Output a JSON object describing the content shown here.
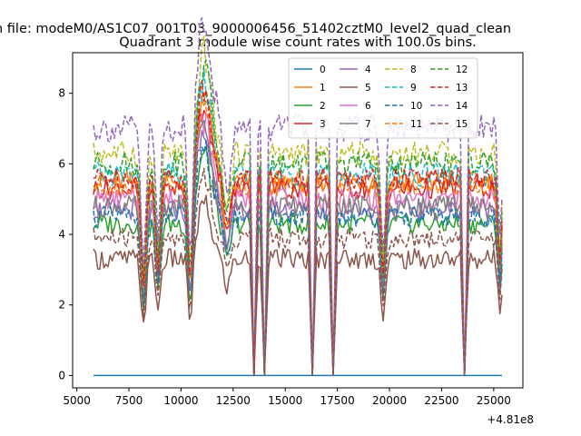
{
  "figure": {
    "suptitle": "n file: modeM0/AS1C07_001T03_9000006456_51402cztM0_level2_quad_clean",
    "title": "Quadrant 3 module wise count rates with 100.0s bins.",
    "x_offset_label": "+4.81e8"
  },
  "chart_data": {
    "type": "line",
    "title": "Quadrant 3 module wise count rates with 100.0s bins.",
    "xlabel": "",
    "ylabel": "",
    "x_offset": 481000000,
    "xlim": [
      4800,
      26400
    ],
    "ylim": [
      -0.35,
      9.15
    ],
    "xticks": [
      5000,
      7500,
      10000,
      12500,
      15000,
      17500,
      20000,
      22500,
      25000
    ],
    "yticks": [
      0,
      2,
      4,
      6,
      8
    ],
    "legend_position": "top-right",
    "x_range": [
      5800,
      25400
    ],
    "gaps_x": [
      13500,
      14000,
      16300,
      17300,
      23600
    ],
    "series": [
      {
        "name": "0",
        "color": "#1f77b4",
        "style": "solid",
        "level": 0.0,
        "amplitude": 0.0
      },
      {
        "name": "1",
        "color": "#ff7f0e",
        "style": "solid",
        "level": 5.5,
        "amplitude": 0.3
      },
      {
        "name": "2",
        "color": "#2ca02c",
        "style": "solid",
        "level": 4.3,
        "amplitude": 0.3
      },
      {
        "name": "3",
        "color": "#d62728",
        "style": "solid",
        "level": 5.3,
        "amplitude": 0.3
      },
      {
        "name": "4",
        "color": "#9467bd",
        "style": "solid",
        "level": 4.7,
        "amplitude": 0.3
      },
      {
        "name": "5",
        "color": "#8c564b",
        "style": "solid",
        "level": 3.3,
        "amplitude": 0.3
      },
      {
        "name": "6",
        "color": "#e377c2",
        "style": "solid",
        "level": 5.0,
        "amplitude": 0.3
      },
      {
        "name": "7",
        "color": "#7f7f7f",
        "style": "solid",
        "level": 4.8,
        "amplitude": 0.3
      },
      {
        "name": "8",
        "color": "#bcbd22",
        "style": "dashed",
        "level": 6.3,
        "amplitude": 0.35
      },
      {
        "name": "9",
        "color": "#17becf",
        "style": "dashed",
        "level": 5.7,
        "amplitude": 0.35
      },
      {
        "name": "10",
        "color": "#1f77b4",
        "style": "dashed",
        "level": 4.5,
        "amplitude": 0.3
      },
      {
        "name": "11",
        "color": "#ff7f0e",
        "style": "dashed",
        "level": 5.4,
        "amplitude": 0.3
      },
      {
        "name": "12",
        "color": "#2ca02c",
        "style": "dashed",
        "level": 6.0,
        "amplitude": 0.35
      },
      {
        "name": "13",
        "color": "#d62728",
        "style": "dashed",
        "level": 5.6,
        "amplitude": 0.3
      },
      {
        "name": "14",
        "color": "#9467bd",
        "style": "dashed",
        "level": 7.0,
        "amplitude": 0.4
      },
      {
        "name": "15",
        "color": "#8c564b",
        "style": "dashed",
        "level": 3.9,
        "amplitude": 0.3
      }
    ]
  }
}
